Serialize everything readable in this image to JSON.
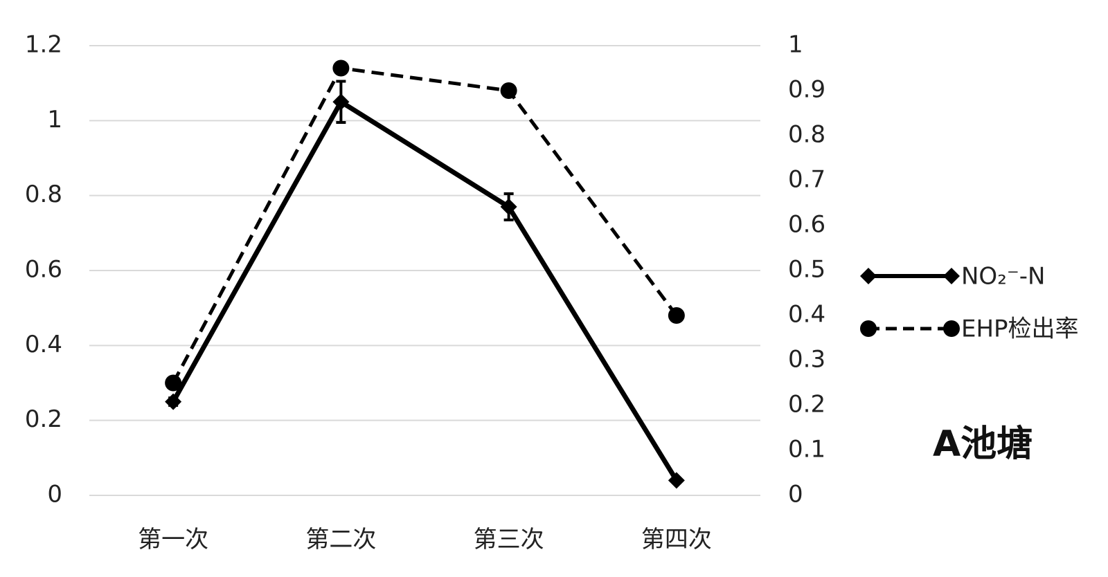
{
  "chart_data": {
    "type": "line",
    "categories": [
      "第一次",
      "第二次",
      "第三次",
      "第四次"
    ],
    "series": [
      {
        "name": "NO₂⁻-N",
        "color": "#000000",
        "marker": "diamond",
        "dash": false,
        "values": [
          0.25,
          1.05,
          0.77,
          0.04
        ],
        "errors": [
          0.01,
          0.055,
          0.035,
          0.005
        ]
      },
      {
        "name": "EHP检出率",
        "color": "#000000",
        "marker": "circle",
        "dash": true,
        "axis": "y2",
        "values": [
          0.25,
          0.95,
          0.9,
          0.4
        ]
      }
    ],
    "ylim": [
      0,
      1.2
    ],
    "yticks": [
      0,
      0.2,
      0.4,
      0.6,
      0.8,
      1,
      1.2
    ],
    "y2lim": [
      0,
      1
    ],
    "y2ticks": [
      0,
      0.1,
      0.2,
      0.3,
      0.4,
      0.5,
      0.6,
      0.7,
      0.8,
      0.9,
      1
    ],
    "grid": true,
    "legend": "right",
    "annotation": "A池塘"
  }
}
